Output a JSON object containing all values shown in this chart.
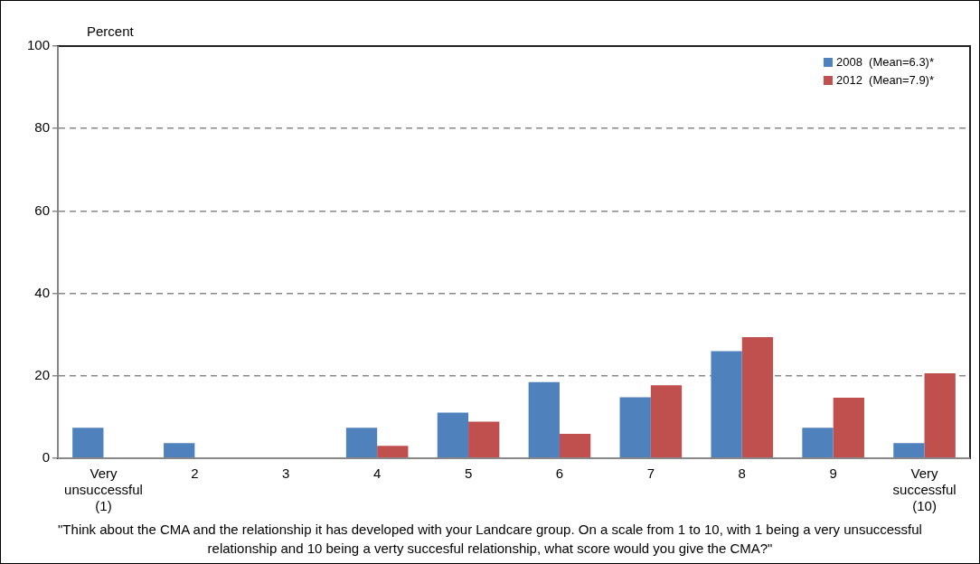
{
  "chart_data": {
    "type": "bar",
    "ylabel": "Percent",
    "categories": [
      "Very\nunsuccessful\n(1)",
      "2",
      "3",
      "4",
      "5",
      "6",
      "7",
      "8",
      "9",
      "Very\nsuccessful\n(10)"
    ],
    "series": [
      {
        "name": "2008  (Mean=6.3)*",
        "color": "#4f81bd",
        "values": [
          7.4,
          3.7,
          0,
          7.4,
          11.1,
          18.5,
          14.8,
          26,
          7.4,
          3.7
        ]
      },
      {
        "name": "2012  (Mean=7.9)*",
        "color": "#c0504d",
        "values": [
          0,
          0,
          0,
          3,
          8.9,
          5.9,
          17.7,
          29.4,
          14.7,
          20.6
        ]
      }
    ],
    "ylim": [
      0,
      100
    ],
    "yticks": [
      0,
      20,
      40,
      60,
      80,
      100
    ],
    "grid": "y",
    "legend": "top right",
    "annotations": [
      "\"Think about the CMA and the relationship it has developed with your Landcare group.  On a scale from 1 to 10, with 1 being a very unsuccessful relationship and 10 being a verty succesful relationship, what score would you give the CMA?\""
    ]
  }
}
